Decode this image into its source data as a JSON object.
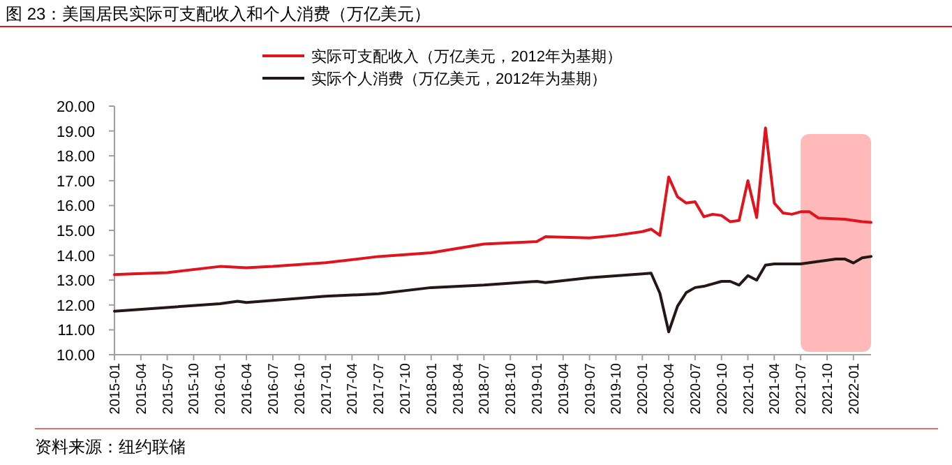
{
  "chart_data": {
    "type": "line",
    "title": "图 23：美国居民实际可支配收入和个人消费（万亿美元）",
    "annotations": [
      "资料来源：纽约联储"
    ],
    "legend": "top",
    "grid": false,
    "marker": "none",
    "line_style": "solid",
    "xlim": [
      "2015-01",
      "2022-03"
    ],
    "xticks": [
      "2015-01",
      "2015-04",
      "2015-07",
      "2015-10",
      "2016-01",
      "2016-04",
      "2016-07",
      "2016-10",
      "2017-01",
      "2017-04",
      "2017-07",
      "2017-10",
      "2018-01",
      "2018-04",
      "2018-07",
      "2018-10",
      "2019-01",
      "2019-04",
      "2019-07",
      "2019-10",
      "2020-01",
      "2020-04",
      "2020-07",
      "2020-10",
      "2021-01",
      "2021-04",
      "2021-07",
      "2021-10",
      "2022-01"
    ],
    "ylim": [
      10,
      20
    ],
    "yticks": [
      {
        "value": 10,
        "label": "10.00"
      },
      {
        "value": 11,
        "label": "11.00"
      },
      {
        "value": 12,
        "label": "12.00"
      },
      {
        "value": 13,
        "label": "13.00"
      },
      {
        "value": 14,
        "label": "14.00"
      },
      {
        "value": 15,
        "label": "15.00"
      },
      {
        "value": 16,
        "label": "16.00"
      },
      {
        "value": 17,
        "label": "17.00"
      },
      {
        "value": 18,
        "label": "18.00"
      },
      {
        "value": 19,
        "label": "19.00"
      },
      {
        "value": 20,
        "label": "20.00"
      }
    ],
    "bands": [
      {
        "axis": "x",
        "from": "2021-07",
        "to": "2022-03",
        "color": "#ffb9b9"
      }
    ],
    "series": [
      {
        "name": "实际可支配收入（万亿美元，2012年为基期）",
        "color": "#e0141e",
        "x": [
          "2015-01",
          "2015-03",
          "2015-07",
          "2016-01",
          "2016-04",
          "2016-07",
          "2017-01",
          "2017-07",
          "2018-01",
          "2018-07",
          "2019-01",
          "2019-02",
          "2019-07",
          "2019-10",
          "2020-01",
          "2020-02",
          "2020-03",
          "2020-04",
          "2020-05",
          "2020-06",
          "2020-07",
          "2020-08",
          "2020-09",
          "2020-10",
          "2020-11",
          "2020-12",
          "2021-01",
          "2021-02",
          "2021-03",
          "2021-04",
          "2021-05",
          "2021-06",
          "2021-07",
          "2021-08",
          "2021-09",
          "2021-12",
          "2022-02",
          "2022-03"
        ],
        "values": [
          13.22,
          13.25,
          13.3,
          13.55,
          13.5,
          13.55,
          13.7,
          13.95,
          14.1,
          14.45,
          14.55,
          14.75,
          14.7,
          14.8,
          14.95,
          15.05,
          14.8,
          17.15,
          16.35,
          16.1,
          16.15,
          15.55,
          15.65,
          15.6,
          15.35,
          15.4,
          17.0,
          15.52,
          19.12,
          16.1,
          15.7,
          15.65,
          15.75,
          15.75,
          15.5,
          15.45,
          15.35,
          15.32
        ]
      },
      {
        "name": "实际个人消费（万亿美元，2012年为基期）",
        "color": "#231815",
        "x": [
          "2015-01",
          "2016-01",
          "2016-03",
          "2016-04",
          "2017-01",
          "2017-07",
          "2018-01",
          "2018-07",
          "2019-01",
          "2019-02",
          "2019-07",
          "2020-01",
          "2020-02",
          "2020-03",
          "2020-04",
          "2020-05",
          "2020-06",
          "2020-07",
          "2020-08",
          "2020-10",
          "2020-11",
          "2020-12",
          "2021-01",
          "2021-02",
          "2021-03",
          "2021-04",
          "2021-07",
          "2021-09",
          "2021-11",
          "2021-12",
          "2022-01",
          "2022-02",
          "2022-03"
        ],
        "values": [
          11.75,
          12.05,
          12.15,
          12.1,
          12.35,
          12.45,
          12.7,
          12.8,
          12.95,
          12.9,
          13.1,
          13.25,
          13.28,
          12.47,
          10.92,
          11.95,
          12.5,
          12.7,
          12.75,
          12.95,
          12.95,
          12.8,
          13.18,
          13.0,
          13.6,
          13.65,
          13.65,
          13.75,
          13.85,
          13.85,
          13.69,
          13.9,
          13.95
        ]
      }
    ]
  }
}
